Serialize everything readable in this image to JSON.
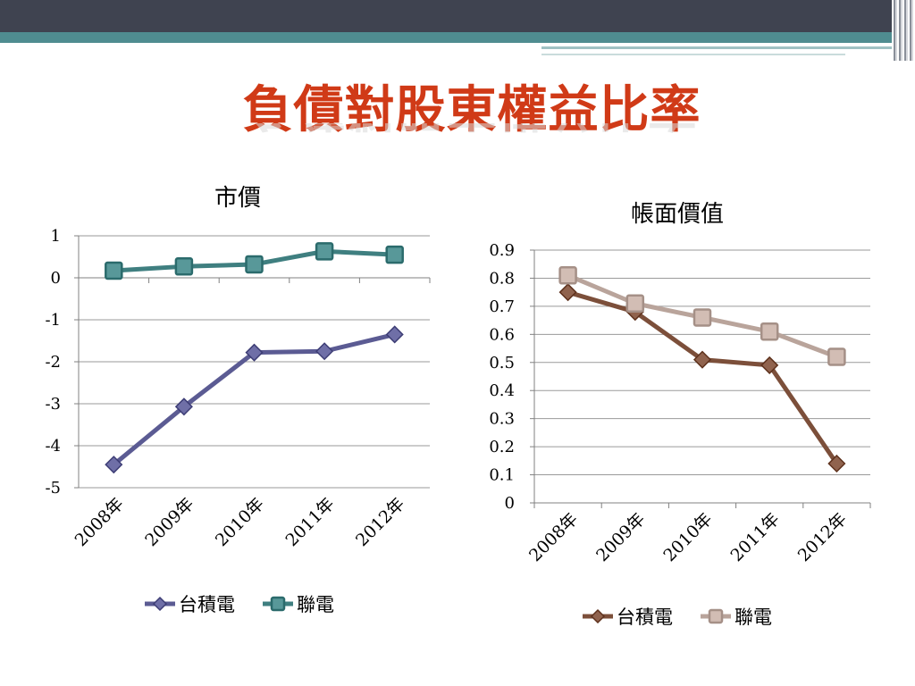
{
  "slide": {
    "title": "負債對股東權益比率"
  },
  "chart_data": [
    {
      "type": "line",
      "title": "市價",
      "categories": [
        "2008年",
        "2009年",
        "2010年",
        "2011年",
        "2012年"
      ],
      "ylim": [
        -5,
        1
      ],
      "yticks": [
        1,
        0,
        -1,
        -2,
        -3,
        -4,
        -5
      ],
      "grid": true,
      "legend": "bottom",
      "series": [
        {
          "name": "台積電",
          "values": [
            -4.45,
            -3.07,
            -1.78,
            -1.75,
            -1.35
          ],
          "marker": "diamond",
          "color": "#5b5b93"
        },
        {
          "name": "聯電",
          "values": [
            0.17,
            0.27,
            0.32,
            0.63,
            0.55
          ],
          "marker": "square",
          "color": "#3f7f80"
        }
      ]
    },
    {
      "type": "line",
      "title": "帳面價值",
      "categories": [
        "2008年",
        "2009年",
        "2010年",
        "2011年",
        "2012年"
      ],
      "ylim": [
        0,
        0.9
      ],
      "yticks": [
        "0.9",
        "0.8",
        "0.7",
        "0.6",
        "0.5",
        "0.4",
        "0.3",
        "0.2",
        "0.1",
        "0"
      ],
      "grid": true,
      "legend": "bottom",
      "series": [
        {
          "name": "台積電",
          "values": [
            0.75,
            0.68,
            0.51,
            0.49,
            0.14
          ],
          "marker": "diamond",
          "color": "#7c4f3a"
        },
        {
          "name": "聯電",
          "values": [
            0.81,
            0.71,
            0.66,
            0.61,
            0.52
          ],
          "marker": "square",
          "color": "#b9a49b"
        }
      ]
    }
  ]
}
